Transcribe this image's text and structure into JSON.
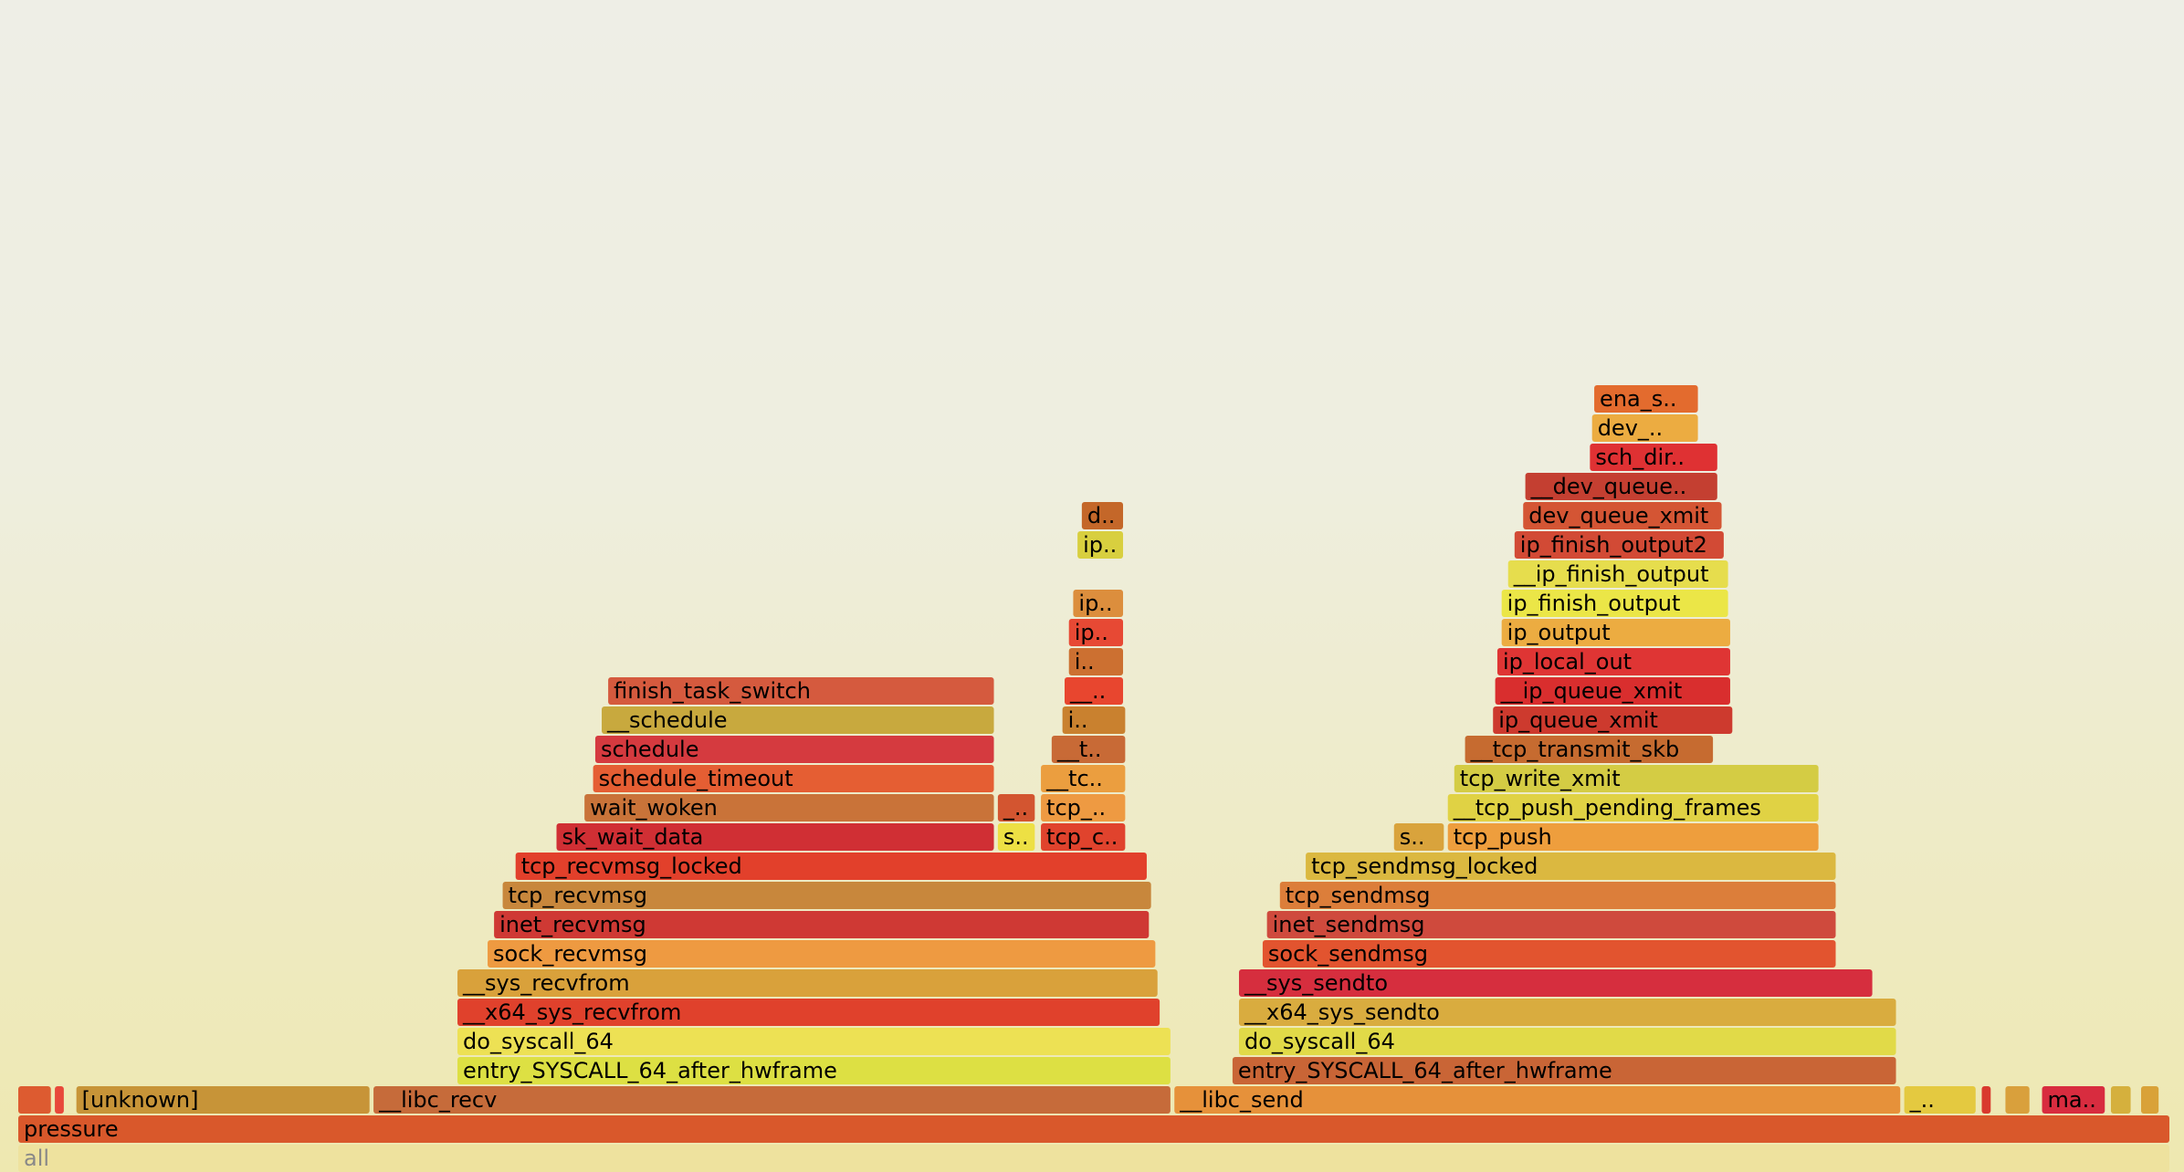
{
  "chart_data": {
    "type": "flamegraph",
    "title": "",
    "frames": [
      {
        "label": "all",
        "row": 0,
        "start": 0,
        "end": 1,
        "color": "#eee29e"
      },
      {
        "label": "pressure",
        "row": 1,
        "start": 0,
        "end": 1,
        "color": "#d9582b"
      },
      {
        "label": "",
        "row": 2,
        "start": 0,
        "end": 0.016,
        "color": "#dd5b30"
      },
      {
        "label": "",
        "row": 2,
        "start": 0.017,
        "end": 0.022,
        "color": "#e8483a"
      },
      {
        "label": "[unknown]",
        "row": 2,
        "start": 0.027,
        "end": 0.164,
        "color": "#c79438"
      },
      {
        "label": "__libc_recv",
        "row": 2,
        "start": 0.165,
        "end": 0.536,
        "color": "#c66b3a"
      },
      {
        "label": "__libc_send",
        "row": 2,
        "start": 0.537,
        "end": 0.875,
        "color": "#e6913a"
      },
      {
        "label": "_..",
        "row": 2,
        "start": 0.876,
        "end": 0.91,
        "color": "#e4c940"
      },
      {
        "label": "",
        "row": 2,
        "start": 0.912,
        "end": 0.917,
        "color": "#d9392e"
      },
      {
        "label": "",
        "row": 2,
        "start": 0.923,
        "end": 0.935,
        "color": "#d9a03c"
      },
      {
        "label": "ma..",
        "row": 2,
        "start": 0.94,
        "end": 0.97,
        "color": "#d82c3f"
      },
      {
        "label": "",
        "row": 2,
        "start": 0.972,
        "end": 0.982,
        "color": "#d5b03d"
      },
      {
        "label": "",
        "row": 2,
        "start": 0.986,
        "end": 0.995,
        "color": "#d9a238"
      },
      {
        "label": "entry_SYSCALL_64_after_hwframe",
        "row": 3,
        "start": 0.204,
        "end": 0.536,
        "color": "#dde043"
      },
      {
        "label": "entry_SYSCALL_64_after_hwframe",
        "row": 3,
        "start": 0.564,
        "end": 0.873,
        "color": "#c96536"
      },
      {
        "label": "do_syscall_64",
        "row": 4,
        "start": 0.204,
        "end": 0.536,
        "color": "#ede154"
      },
      {
        "label": "do_syscall_64",
        "row": 4,
        "start": 0.567,
        "end": 0.873,
        "color": "#e1da48"
      },
      {
        "label": "__x64_sys_recvfrom",
        "row": 5,
        "start": 0.204,
        "end": 0.531,
        "color": "#e0412c"
      },
      {
        "label": "__x64_sys_sendto",
        "row": 5,
        "start": 0.567,
        "end": 0.873,
        "color": "#d9ac3f"
      },
      {
        "label": "__sys_recvfrom",
        "row": 6,
        "start": 0.204,
        "end": 0.53,
        "color": "#d9a13b"
      },
      {
        "label": "__sys_sendto",
        "row": 6,
        "start": 0.567,
        "end": 0.862,
        "color": "#d62e3e"
      },
      {
        "label": "sock_recvmsg",
        "row": 7,
        "start": 0.218,
        "end": 0.529,
        "color": "#ee9a41"
      },
      {
        "label": "sock_sendmsg",
        "row": 7,
        "start": 0.578,
        "end": 0.845,
        "color": "#e2542f"
      },
      {
        "label": "inet_recvmsg",
        "row": 8,
        "start": 0.221,
        "end": 0.526,
        "color": "#cf3934"
      },
      {
        "label": "inet_sendmsg",
        "row": 8,
        "start": 0.58,
        "end": 0.845,
        "color": "#cf4a3d"
      },
      {
        "label": "tcp_recvmsg",
        "row": 9,
        "start": 0.225,
        "end": 0.527,
        "color": "#c8873c"
      },
      {
        "label": "tcp_sendmsg",
        "row": 9,
        "start": 0.586,
        "end": 0.845,
        "color": "#dc7e3a"
      },
      {
        "label": "tcp_recvmsg_locked",
        "row": 10,
        "start": 0.231,
        "end": 0.525,
        "color": "#e2402b"
      },
      {
        "label": "tcp_sendmsg_locked",
        "row": 10,
        "start": 0.598,
        "end": 0.845,
        "color": "#dbb840"
      },
      {
        "label": "sk_wait_data",
        "row": 11,
        "start": 0.25,
        "end": 0.454,
        "color": "#d02f34"
      },
      {
        "label": "s..",
        "row": 11,
        "start": 0.455,
        "end": 0.473,
        "color": "#ede044"
      },
      {
        "label": "tcp_c..",
        "row": 11,
        "start": 0.475,
        "end": 0.515,
        "color": "#e0432d"
      },
      {
        "label": "tcp_push",
        "row": 11,
        "start": 0.664,
        "end": 0.837,
        "color": "#ee9e3d"
      },
      {
        "label": "s..",
        "row": 11,
        "start": 0.639,
        "end": 0.663,
        "color": "#d9a33c"
      },
      {
        "label": "wait_woken",
        "row": 12,
        "start": 0.263,
        "end": 0.454,
        "color": "#c97339"
      },
      {
        "label": "_..",
        "row": 12,
        "start": 0.455,
        "end": 0.473,
        "color": "#d35530"
      },
      {
        "label": "tcp_..",
        "row": 12,
        "start": 0.475,
        "end": 0.515,
        "color": "#ee9a42"
      },
      {
        "label": "__tcp_push_pending_frames",
        "row": 12,
        "start": 0.664,
        "end": 0.837,
        "color": "#e0d244"
      },
      {
        "label": "schedule_timeout",
        "row": 13,
        "start": 0.267,
        "end": 0.454,
        "color": "#e55e33"
      },
      {
        "label": "__tc..",
        "row": 13,
        "start": 0.475,
        "end": 0.515,
        "color": "#eb9e3f"
      },
      {
        "label": "tcp_write_xmit",
        "row": 13,
        "start": 0.667,
        "end": 0.837,
        "color": "#d4cc44"
      },
      {
        "label": "schedule",
        "row": 14,
        "start": 0.268,
        "end": 0.454,
        "color": "#d53a3f"
      },
      {
        "label": "__t..",
        "row": 14,
        "start": 0.48,
        "end": 0.515,
        "color": "#c86a36"
      },
      {
        "label": "__tcp_transmit_skb",
        "row": 14,
        "start": 0.672,
        "end": 0.788,
        "color": "#c66b30"
      },
      {
        "label": "__schedule",
        "row": 15,
        "start": 0.271,
        "end": 0.454,
        "color": "#c8a93e"
      },
      {
        "label": "i..",
        "row": 15,
        "start": 0.485,
        "end": 0.515,
        "color": "#c9812f"
      },
      {
        "label": "ip_queue_xmit",
        "row": 15,
        "start": 0.685,
        "end": 0.797,
        "color": "#cd3a2e"
      },
      {
        "label": "finish_task_switch",
        "row": 16,
        "start": 0.274,
        "end": 0.454,
        "color": "#d55a3e"
      },
      {
        "label": "__..",
        "row": 16,
        "start": 0.486,
        "end": 0.514,
        "color": "#e8462f"
      },
      {
        "label": "__ip_queue_xmit",
        "row": 16,
        "start": 0.686,
        "end": 0.796,
        "color": "#d92e2e"
      },
      {
        "label": "i..",
        "row": 17,
        "start": 0.488,
        "end": 0.514,
        "color": "#cc7031"
      },
      {
        "label": "ip_local_out",
        "row": 17,
        "start": 0.687,
        "end": 0.796,
        "color": "#df3534"
      },
      {
        "label": "ip..",
        "row": 18,
        "start": 0.488,
        "end": 0.514,
        "color": "#e74934"
      },
      {
        "label": "ip_output",
        "row": 18,
        "start": 0.689,
        "end": 0.796,
        "color": "#ecac41"
      },
      {
        "label": "ip..",
        "row": 19,
        "start": 0.49,
        "end": 0.514,
        "color": "#dc8e3d"
      },
      {
        "label": "ip_finish_output",
        "row": 19,
        "start": 0.689,
        "end": 0.795,
        "color": "#ebe647"
      },
      {
        "label": "__ip_finish_output",
        "row": 20,
        "start": 0.692,
        "end": 0.795,
        "color": "#e6dd4d"
      },
      {
        "label": "ip..",
        "row": 21,
        "start": 0.492,
        "end": 0.514,
        "color": "#d8cf3f"
      },
      {
        "label": "ip_finish_output2",
        "row": 21,
        "start": 0.695,
        "end": 0.793,
        "color": "#d24a35"
      },
      {
        "label": "d..",
        "row": 22,
        "start": 0.494,
        "end": 0.514,
        "color": "#c46729"
      },
      {
        "label": "dev_queue_xmit",
        "row": 22,
        "start": 0.699,
        "end": 0.792,
        "color": "#d45534"
      },
      {
        "label": "__dev_queue..",
        "row": 23,
        "start": 0.7,
        "end": 0.79,
        "color": "#c43f31"
      },
      {
        "label": "sch_dir..",
        "row": 24,
        "start": 0.73,
        "end": 0.79,
        "color": "#df3133"
      },
      {
        "label": "dev_..",
        "row": 25,
        "start": 0.731,
        "end": 0.781,
        "color": "#ecac41"
      },
      {
        "label": "ena_s..",
        "row": 26,
        "start": 0.732,
        "end": 0.781,
        "color": "#e36b2e"
      }
    ]
  }
}
